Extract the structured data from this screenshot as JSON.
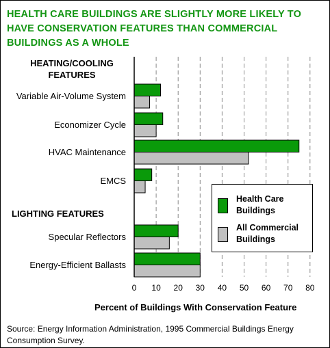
{
  "colors": {
    "title": "#149614",
    "series_health": "#0a9a0a",
    "series_commercial": "#c0c0c0",
    "grid": "#888888"
  },
  "chart_data": {
    "type": "bar",
    "orientation": "horizontal",
    "title": "HEALTH CARE BUILDINGS ARE SLIGHTLY MORE LIKELY TO HAVE CONSERVATION FEATURES THAN COMMERCIAL BUILDINGS AS A WHOLE",
    "title_lines": [
      "HEALTH CARE BUILDINGS ARE SLIGHTLY MORE LIKELY TO",
      "HAVE CONSERVATION FEATURES THAN COMMERCIAL",
      "BUILDINGS AS A WHOLE"
    ],
    "sections": [
      {
        "label_lines": [
          "HEATING/COOLING",
          "FEATURES"
        ],
        "categories": [
          "Variable Air-Volume System",
          "Economizer Cycle",
          "HVAC Maintenance",
          "EMCS"
        ],
        "health": [
          12,
          13,
          75,
          8
        ],
        "commercial": [
          7,
          10,
          52,
          5
        ]
      },
      {
        "label_lines": [
          "LIGHTING FEATURES"
        ],
        "categories": [
          "Specular Reflectors",
          "Energy-Efficient Ballasts"
        ],
        "health": [
          20,
          30
        ],
        "commercial": [
          16,
          30
        ]
      }
    ],
    "series": [
      {
        "name_lines": [
          "Health Care",
          "Buildings"
        ]
      },
      {
        "name_lines": [
          "All Commercial",
          "Buildings"
        ]
      }
    ],
    "xlabel": "Percent of Buildings With Conservation Feature",
    "xlim": [
      0,
      80
    ],
    "xticks": [
      0,
      10,
      20,
      30,
      40,
      50,
      60,
      70,
      80
    ],
    "grid": "vertical-dashed",
    "legend_position": "lower-right"
  },
  "source": "Source:  Energy Information Administration, 1995 Commercial Buildings Energy Consumption Survey."
}
